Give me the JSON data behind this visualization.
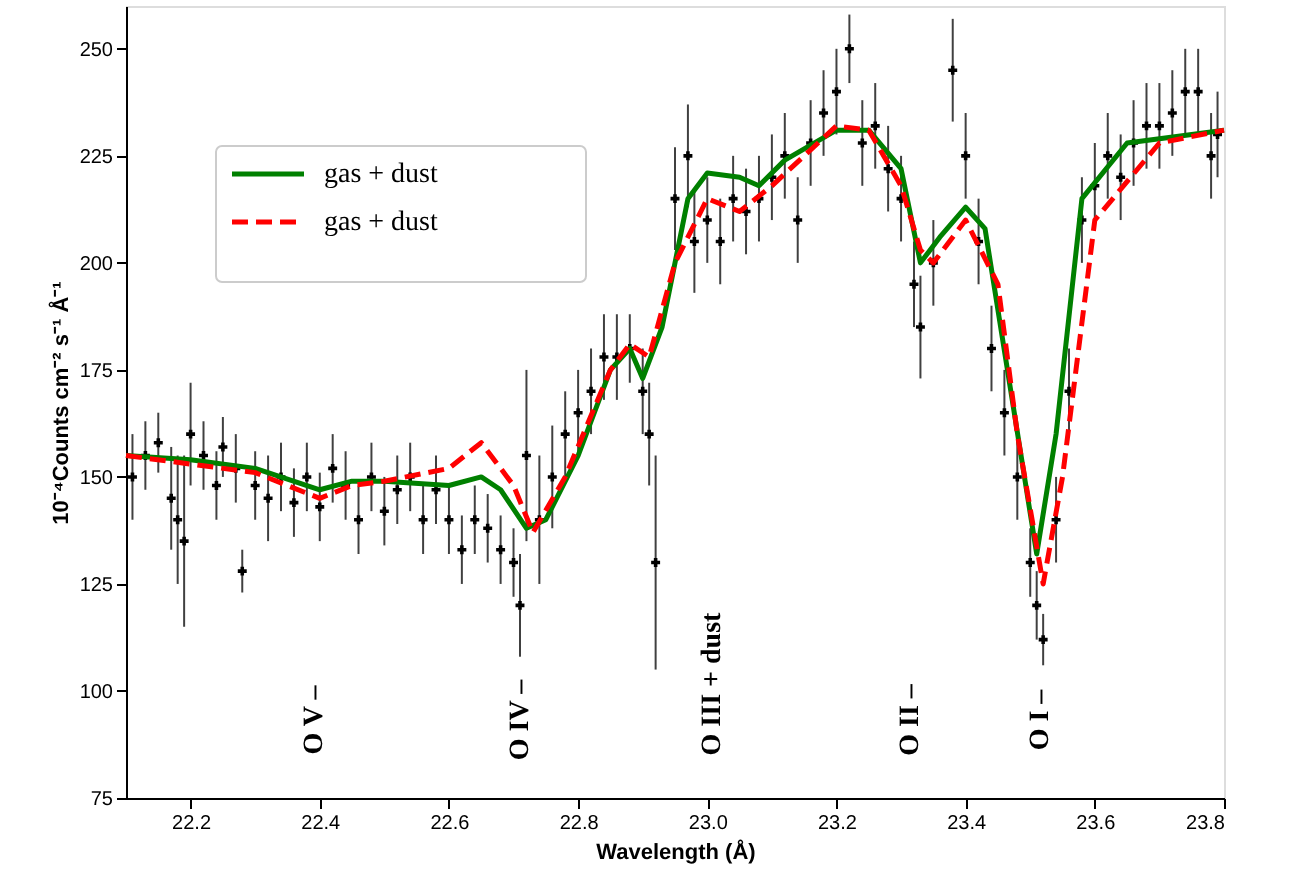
{
  "chart_data": {
    "type": "line",
    "xlabel": "Wavelength (Å)",
    "ylabel": "10⁻⁴Counts cm⁻² s⁻¹ Å⁻¹",
    "xlim": [
      22.1,
      23.8
    ],
    "xticks": [
      22.2,
      22.4,
      22.6,
      22.8,
      {
        "value": 23,
        "label": "23.0"
      },
      23.2,
      23.4,
      23.6,
      23.8
    ],
    "ylim": [
      75,
      260
    ],
    "yticks": [
      75,
      100,
      125,
      150,
      175,
      200,
      225,
      250
    ],
    "grid": false,
    "legend": "top left",
    "annotations": [
      "O V –",
      "O IV –",
      "O III + dust",
      "O II –",
      "O I –"
    ],
    "series": [
      {
        "type": "scatter",
        "color": "#000000",
        "marker": "cross",
        "x": [
          22.11,
          22.13,
          22.15,
          22.17,
          22.18,
          22.19,
          22.2,
          22.22,
          22.24,
          22.25,
          22.27,
          22.28,
          22.3,
          22.32,
          22.34,
          22.36,
          22.38,
          22.4,
          22.42,
          22.44,
          22.46,
          22.48,
          22.5,
          22.52,
          22.54,
          22.56,
          22.58,
          22.6,
          22.62,
          22.64,
          22.66,
          22.68,
          22.7,
          22.71,
          22.72,
          22.74,
          22.76,
          22.78,
          22.8,
          22.82,
          22.84,
          22.86,
          22.88,
          22.9,
          22.91,
          22.92,
          22.95,
          22.97,
          22.98,
          23.0,
          23.02,
          23.04,
          23.06,
          23.08,
          23.1,
          23.12,
          23.14,
          23.16,
          23.18,
          23.2,
          23.22,
          23.24,
          23.26,
          23.28,
          23.3,
          23.32,
          23.33,
          23.35,
          23.38,
          23.4,
          23.42,
          23.44,
          23.46,
          23.48,
          23.5,
          23.51,
          23.52,
          23.54,
          23.56,
          23.58,
          23.6,
          23.62,
          23.64,
          23.66,
          23.68,
          23.7,
          23.72,
          23.74,
          23.76,
          23.78,
          23.79
        ],
        "values": [
          150,
          155,
          158,
          145,
          140,
          135,
          160,
          155,
          148,
          157,
          152,
          128,
          148,
          145,
          150,
          144,
          150,
          143,
          152,
          148,
          140,
          150,
          142,
          147,
          150,
          140,
          147,
          140,
          133,
          140,
          138,
          133,
          130,
          120,
          155,
          140,
          150,
          160,
          165,
          170,
          178,
          178,
          180,
          170,
          160,
          130,
          215,
          225,
          205,
          210,
          205,
          215,
          212,
          215,
          220,
          225,
          210,
          228,
          235,
          240,
          250,
          228,
          232,
          222,
          215,
          195,
          185,
          200,
          245,
          225,
          205,
          180,
          165,
          150,
          130,
          120,
          112,
          140,
          170,
          210,
          218,
          225,
          220,
          228,
          232,
          232,
          235,
          240,
          240,
          225,
          230
        ],
        "errors": [
          10,
          8,
          7,
          12,
          15,
          20,
          12,
          8,
          8,
          7,
          8,
          5,
          8,
          10,
          8,
          8,
          8,
          8,
          8,
          8,
          8,
          8,
          8,
          8,
          8,
          8,
          8,
          8,
          8,
          8,
          8,
          8,
          8,
          12,
          20,
          15,
          12,
          10,
          10,
          10,
          10,
          10,
          8,
          10,
          12,
          25,
          12,
          12,
          12,
          10,
          10,
          10,
          10,
          10,
          10,
          10,
          10,
          10,
          10,
          10,
          8,
          10,
          10,
          10,
          10,
          10,
          12,
          10,
          12,
          10,
          10,
          10,
          10,
          10,
          8,
          8,
          6,
          10,
          10,
          10,
          10,
          10,
          10,
          10,
          10,
          10,
          10,
          10,
          10,
          10,
          10
        ]
      },
      {
        "name": "gas + dust",
        "color": "#008000",
        "line_style": "solid",
        "x": [
          22.1,
          22.2,
          22.3,
          22.4,
          22.45,
          22.5,
          22.6,
          22.65,
          22.68,
          22.72,
          22.75,
          22.8,
          22.85,
          22.88,
          22.9,
          22.93,
          22.97,
          23.0,
          23.05,
          23.08,
          23.12,
          23.2,
          23.25,
          23.3,
          23.33,
          23.36,
          23.4,
          23.43,
          23.47,
          23.51,
          23.54,
          23.58,
          23.65,
          23.8
        ],
        "values": [
          155,
          154,
          152,
          147,
          149,
          149,
          148,
          150,
          147,
          138,
          140,
          155,
          175,
          180,
          173,
          185,
          215,
          221,
          220,
          218,
          224,
          231,
          231,
          222,
          200,
          206,
          213,
          208,
          170,
          132,
          160,
          215,
          228,
          231
        ]
      },
      {
        "name": "gas + dust",
        "color": "#ff0000",
        "line_style": "dashed",
        "x": [
          22.1,
          22.2,
          22.3,
          22.4,
          22.45,
          22.5,
          22.6,
          22.65,
          22.7,
          22.73,
          22.78,
          22.85,
          22.88,
          22.91,
          22.95,
          23.0,
          23.05,
          23.1,
          23.2,
          23.25,
          23.3,
          23.33,
          23.35,
          23.4,
          23.45,
          23.48,
          23.52,
          23.55,
          23.6,
          23.7,
          23.8
        ],
        "values": [
          155,
          153,
          151,
          145,
          148,
          149,
          152,
          158,
          148,
          137,
          150,
          175,
          181,
          178,
          200,
          215,
          212,
          218,
          232,
          231,
          218,
          203,
          200,
          210,
          195,
          160,
          125,
          150,
          210,
          228,
          231
        ]
      }
    ]
  }
}
